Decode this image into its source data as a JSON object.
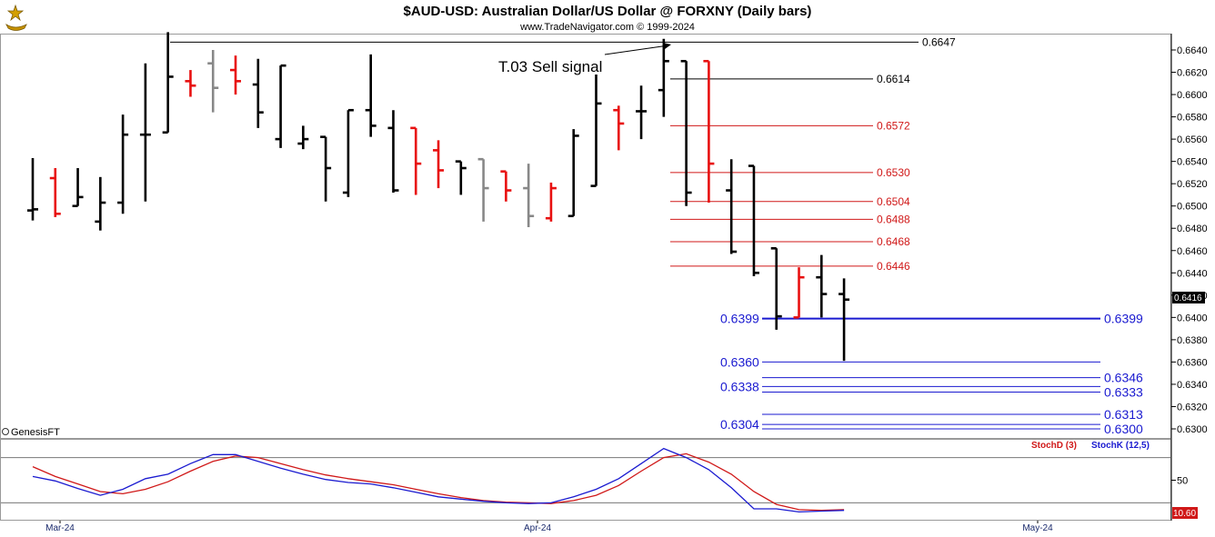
{
  "title": "$AUD-USD:  Australian Dollar/US Dollar @ FORXNY  (Daily bars)",
  "subtitle": "www.TradeNavigator.com © 1999-2024",
  "brand_label": "GenesisFT",
  "signal_label": "T.03 Sell signal",
  "current_price_label": "0.6416",
  "stoch_value_label": "10.60",
  "stoch_legend": {
    "d": "StochD (3)",
    "k": "StochK (12,5)"
  },
  "colors": {
    "bull": "#000000",
    "bear": "#e81010",
    "neutral": "#888888",
    "red_level": "#d01818",
    "blue_level": "#1a1ad0",
    "stoch_d": "#d01818",
    "stoch_k": "#1a1ad0"
  },
  "chart_data": {
    "type": "ohlc",
    "y_axis": {
      "min": 0.6296,
      "max": 0.6652,
      "ticks": [
        "0.6640",
        "0.6620",
        "0.6600",
        "0.6580",
        "0.6560",
        "0.6540",
        "0.6520",
        "0.6500",
        "0.6480",
        "0.6460",
        "0.6440",
        "0.6420",
        "0.6400",
        "0.6380",
        "0.6360",
        "0.6340",
        "0.6320",
        "0.6300"
      ]
    },
    "x_labels": [
      "Mar-24",
      "Apr-24",
      "May-24"
    ],
    "bars": [
      {
        "o": 0.6496,
        "h": 0.6543,
        "l": 0.6487,
        "c": 0.6497,
        "col": "bull"
      },
      {
        "o": 0.6525,
        "h": 0.6534,
        "l": 0.649,
        "c": 0.6493,
        "col": "bear"
      },
      {
        "o": 0.65,
        "h": 0.6534,
        "l": 0.65,
        "c": 0.6508,
        "col": "bull"
      },
      {
        "o": 0.6486,
        "h": 0.6526,
        "l": 0.6478,
        "c": 0.6503,
        "col": "bull"
      },
      {
        "o": 0.6503,
        "h": 0.6582,
        "l": 0.6493,
        "c": 0.6564,
        "col": "bull"
      },
      {
        "o": 0.6564,
        "h": 0.6628,
        "l": 0.6504,
        "c": 0.6564,
        "col": "bull"
      },
      {
        "o": 0.6566,
        "h": 0.6656,
        "l": 0.6566,
        "c": 0.6616,
        "col": "bull"
      },
      {
        "o": 0.6612,
        "h": 0.6622,
        "l": 0.6598,
        "c": 0.6608,
        "col": "bear"
      },
      {
        "o": 0.6628,
        "h": 0.664,
        "l": 0.6584,
        "c": 0.6606,
        "col": "neutral"
      },
      {
        "o": 0.6622,
        "h": 0.6635,
        "l": 0.66,
        "c": 0.6612,
        "col": "bear"
      },
      {
        "o": 0.6609,
        "h": 0.6632,
        "l": 0.657,
        "c": 0.6584,
        "col": "bull"
      },
      {
        "o": 0.656,
        "h": 0.6626,
        "l": 0.6552,
        "c": 0.6626,
        "col": "bull"
      },
      {
        "o": 0.6556,
        "h": 0.6572,
        "l": 0.6551,
        "c": 0.656,
        "col": "bull"
      },
      {
        "o": 0.6562,
        "h": 0.6562,
        "l": 0.6504,
        "c": 0.6534,
        "col": "bull"
      },
      {
        "o": 0.6512,
        "h": 0.6586,
        "l": 0.6508,
        "c": 0.6586,
        "col": "bull"
      },
      {
        "o": 0.6586,
        "h": 0.6636,
        "l": 0.6562,
        "c": 0.6572,
        "col": "bull"
      },
      {
        "o": 0.657,
        "h": 0.6586,
        "l": 0.6512,
        "c": 0.6514,
        "col": "bull"
      },
      {
        "o": 0.657,
        "h": 0.657,
        "l": 0.651,
        "c": 0.6538,
        "col": "bear"
      },
      {
        "o": 0.655,
        "h": 0.6559,
        "l": 0.6516,
        "c": 0.6532,
        "col": "bear"
      },
      {
        "o": 0.654,
        "h": 0.654,
        "l": 0.651,
        "c": 0.6534,
        "col": "bull"
      },
      {
        "o": 0.6542,
        "h": 0.6542,
        "l": 0.6486,
        "c": 0.6516,
        "col": "neutral"
      },
      {
        "o": 0.6531,
        "h": 0.6531,
        "l": 0.6504,
        "c": 0.6514,
        "col": "bear"
      },
      {
        "o": 0.6516,
        "h": 0.6538,
        "l": 0.6481,
        "c": 0.6491,
        "col": "neutral"
      },
      {
        "o": 0.6489,
        "h": 0.6521,
        "l": 0.6486,
        "c": 0.6516,
        "col": "bear"
      },
      {
        "o": 0.6491,
        "h": 0.6569,
        "l": 0.6491,
        "c": 0.6563,
        "col": "bull"
      },
      {
        "o": 0.6518,
        "h": 0.6618,
        "l": 0.6518,
        "c": 0.6592,
        "col": "bull"
      },
      {
        "o": 0.6586,
        "h": 0.659,
        "l": 0.655,
        "c": 0.6574,
        "col": "bear"
      },
      {
        "o": 0.6585,
        "h": 0.6608,
        "l": 0.656,
        "c": 0.6585,
        "col": "bull"
      },
      {
        "o": 0.6604,
        "h": 0.665,
        "l": 0.658,
        "c": 0.663,
        "col": "bull"
      },
      {
        "o": 0.663,
        "h": 0.663,
        "l": 0.65,
        "c": 0.6512,
        "col": "bull"
      },
      {
        "o": 0.663,
        "h": 0.663,
        "l": 0.6503,
        "c": 0.6538,
        "col": "bear"
      },
      {
        "o": 0.6514,
        "h": 0.6542,
        "l": 0.6457,
        "c": 0.6459,
        "col": "bull"
      },
      {
        "o": 0.6536,
        "h": 0.6536,
        "l": 0.6437,
        "c": 0.644,
        "col": "bull"
      },
      {
        "o": 0.6462,
        "h": 0.6462,
        "l": 0.6389,
        "c": 0.6401,
        "col": "bull"
      },
      {
        "o": 0.64,
        "h": 0.6445,
        "l": 0.64,
        "c": 0.6436,
        "col": "bear"
      },
      {
        "o": 0.6436,
        "h": 0.6456,
        "l": 0.64,
        "c": 0.6421,
        "col": "bull"
      },
      {
        "o": 0.6421,
        "h": 0.6435,
        "l": 0.6361,
        "c": 0.6416,
        "col": "bull"
      }
    ],
    "red_levels": [
      "0.6572",
      "0.6530",
      "0.6504",
      "0.6488",
      "0.6468",
      "0.6446"
    ],
    "top_levels": [
      "0.6647",
      "0.6614"
    ],
    "blue_levels": {
      "main": "0.6399",
      "left": [
        "0.6360",
        "0.6338",
        "0.6304"
      ],
      "right": [
        "0.6346",
        "0.6333",
        "0.6313",
        "0.6300"
      ]
    },
    "stochastic": {
      "tick_label": "50",
      "overbought": 80,
      "oversold": 20,
      "stoch_k": [
        55,
        49,
        39,
        30,
        38,
        52,
        58,
        72,
        84,
        84,
        75,
        66,
        58,
        51,
        47,
        45,
        40,
        34,
        28,
        25,
        22,
        20,
        19,
        20,
        28,
        38,
        52,
        72,
        92,
        80,
        64,
        40,
        12,
        12,
        8,
        9,
        10
      ],
      "stoch_d": [
        68,
        55,
        45,
        35,
        32,
        38,
        48,
        62,
        75,
        82,
        80,
        72,
        64,
        57,
        52,
        48,
        44,
        38,
        32,
        27,
        23,
        21,
        20,
        19,
        23,
        30,
        43,
        62,
        80,
        85,
        74,
        58,
        35,
        18,
        11,
        10,
        11
      ]
    }
  }
}
